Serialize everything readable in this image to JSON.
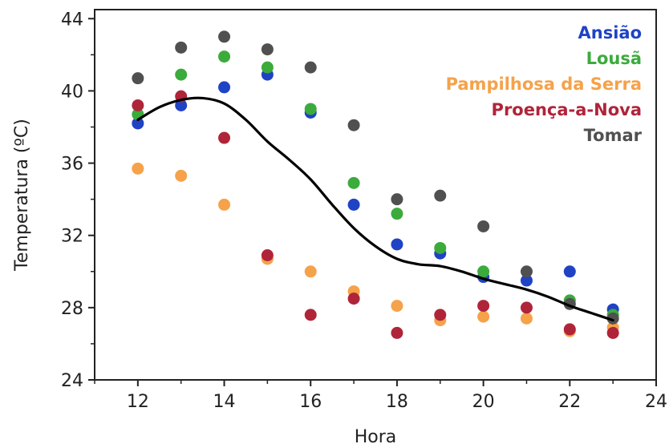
{
  "chart_data": {
    "type": "scatter",
    "title": "",
    "xlabel": "Hora",
    "ylabel": "Temperatura (ºC)",
    "xlim": [
      11,
      24
    ],
    "ylim": [
      24,
      44.5
    ],
    "xticks": [
      12,
      14,
      16,
      18,
      20,
      22,
      24
    ],
    "yticks": [
      24,
      28,
      32,
      36,
      40,
      44
    ],
    "grid": false,
    "legend_position": "top-right",
    "series": [
      {
        "name": "Ansião",
        "color": "#1f43c4",
        "points": [
          [
            12,
            38.2
          ],
          [
            13,
            39.2
          ],
          [
            14,
            40.2
          ],
          [
            15,
            40.9
          ],
          [
            16,
            38.8
          ],
          [
            17,
            33.7
          ],
          [
            18,
            31.5
          ],
          [
            19,
            31.0
          ],
          [
            20,
            29.7
          ],
          [
            21,
            29.5
          ],
          [
            22,
            30.0
          ],
          [
            23,
            27.9
          ]
        ]
      },
      {
        "name": "Lousã",
        "color": "#3bab3c",
        "points": [
          [
            12,
            38.7
          ],
          [
            13,
            40.9
          ],
          [
            14,
            41.9
          ],
          [
            15,
            41.3
          ],
          [
            16,
            39.0
          ],
          [
            17,
            34.9
          ],
          [
            18,
            33.2
          ],
          [
            19,
            31.3
          ],
          [
            20,
            30.0
          ],
          [
            22,
            28.4
          ],
          [
            23,
            27.6
          ]
        ]
      },
      {
        "name": "Pampilhosa da Serra",
        "color": "#f5a24a",
        "points": [
          [
            12,
            35.7
          ],
          [
            13,
            35.3
          ],
          [
            14,
            33.7
          ],
          [
            15,
            30.7
          ],
          [
            16,
            30.0
          ],
          [
            17,
            28.9
          ],
          [
            18,
            28.1
          ],
          [
            19,
            27.3
          ],
          [
            20,
            27.5
          ],
          [
            21,
            27.4
          ],
          [
            22,
            26.7
          ],
          [
            23,
            26.9
          ]
        ]
      },
      {
        "name": "Proença-a-Nova",
        "color": "#b0243a",
        "points": [
          [
            12,
            39.2
          ],
          [
            13,
            39.7
          ],
          [
            14,
            37.4
          ],
          [
            15,
            30.9
          ],
          [
            16,
            27.6
          ],
          [
            17,
            28.5
          ],
          [
            18,
            26.6
          ],
          [
            19,
            27.6
          ],
          [
            20,
            28.1
          ],
          [
            21,
            28.0
          ],
          [
            22,
            26.8
          ],
          [
            23,
            26.6
          ]
        ]
      },
      {
        "name": "Tomar",
        "color": "#505050",
        "points": [
          [
            12,
            40.7
          ],
          [
            13,
            42.4
          ],
          [
            14,
            43.0
          ],
          [
            15,
            42.3
          ],
          [
            16,
            41.3
          ],
          [
            17,
            38.1
          ],
          [
            18,
            34.0
          ],
          [
            19,
            34.2
          ],
          [
            20,
            32.5
          ],
          [
            21,
            30.0
          ],
          [
            22,
            28.2
          ],
          [
            23,
            27.4
          ]
        ]
      }
    ],
    "trend_line": {
      "color": "#000000",
      "points": [
        [
          12,
          38.4
        ],
        [
          12.5,
          39.1
        ],
        [
          13,
          39.5
        ],
        [
          13.5,
          39.6
        ],
        [
          14,
          39.3
        ],
        [
          14.5,
          38.4
        ],
        [
          15,
          37.2
        ],
        [
          15.5,
          36.2
        ],
        [
          16,
          35.1
        ],
        [
          16.5,
          33.7
        ],
        [
          17,
          32.4
        ],
        [
          17.5,
          31.4
        ],
        [
          18,
          30.7
        ],
        [
          18.5,
          30.4
        ],
        [
          19,
          30.3
        ],
        [
          19.5,
          30.0
        ],
        [
          20,
          29.6
        ],
        [
          20.5,
          29.3
        ],
        [
          21,
          29.0
        ],
        [
          21.5,
          28.6
        ],
        [
          22,
          28.1
        ],
        [
          22.5,
          27.7
        ],
        [
          23,
          27.3
        ]
      ]
    }
  }
}
